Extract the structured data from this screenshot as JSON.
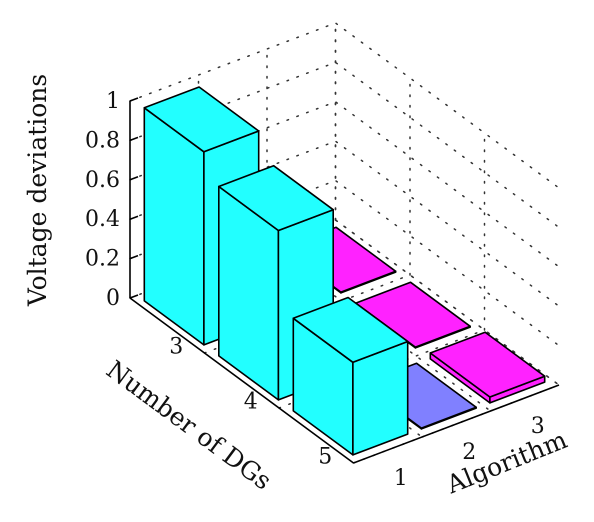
{
  "chart_data": {
    "type": "bar",
    "subtype": "3d-bar",
    "title": "",
    "zlabel": "Voltage deviations",
    "xlabel": "Number of DGs",
    "ylabel": "Algorithm",
    "x_categories": [
      "3",
      "4",
      "5"
    ],
    "y_categories": [
      "1",
      "2",
      "3"
    ],
    "z_ticks": [
      "0",
      "0.2",
      "0.4",
      "0.6",
      "0.8",
      "1"
    ],
    "zlim": [
      0,
      1
    ],
    "grid": true,
    "bars": [
      {
        "dgs": "3",
        "algorithm": "1",
        "value": 0.98,
        "color": "#22ffff"
      },
      {
        "dgs": "4",
        "algorithm": "1",
        "value": 0.86,
        "color": "#22ffff"
      },
      {
        "dgs": "5",
        "algorithm": "1",
        "value": 0.47,
        "color": "#22ffff"
      },
      {
        "dgs": "3",
        "algorithm": "2",
        "value": 0.02,
        "color": "#ff22ff"
      },
      {
        "dgs": "4",
        "algorithm": "2",
        "value": 0.02,
        "color": "#ff22ff"
      },
      {
        "dgs": "5",
        "algorithm": "2",
        "value": 0.0,
        "color": "#8080ff"
      },
      {
        "dgs": "3",
        "algorithm": "3",
        "value": 0.0,
        "color": "#ff22ff"
      },
      {
        "dgs": "4",
        "algorithm": "3",
        "value": 0.0,
        "color": "#ff22ff"
      },
      {
        "dgs": "5",
        "algorithm": "3",
        "value": 0.03,
        "color": "#ff22ff"
      }
    ]
  }
}
